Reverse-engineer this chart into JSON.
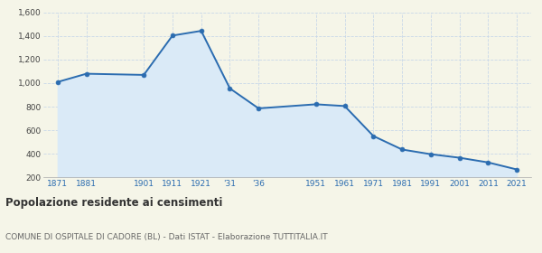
{
  "x_labels": [
    "1871",
    "1881",
    "1901",
    "1911",
    "1921",
    "'31",
    "'36",
    "1951",
    "1961",
    "1971",
    "1981",
    "1991",
    "2001",
    "2011",
    "2021"
  ],
  "x_positions": [
    0,
    1,
    3,
    4,
    5,
    6,
    7,
    9,
    10,
    11,
    12,
    13,
    14,
    15,
    16
  ],
  "y_values": [
    1010,
    1080,
    1070,
    1405,
    1445,
    955,
    785,
    820,
    805,
    550,
    435,
    395,
    365,
    325,
    265
  ],
  "line_color": "#2b6cb0",
  "fill_color": "#daeaf7",
  "marker_color": "#2b6cb0",
  "bg_color": "#f5f5e8",
  "grid_color": "#c8d8e8",
  "ylim": [
    200,
    1600
  ],
  "yticks": [
    200,
    400,
    600,
    800,
    1000,
    1200,
    1400,
    1600
  ],
  "ytick_labels": [
    "200",
    "400",
    "600",
    "800",
    "1,000",
    "1,200",
    "1,400",
    "1,600"
  ],
  "title": "Popolazione residente ai censimenti",
  "subtitle": "COMUNE DI OSPITALE DI CADORE (BL) - Dati ISTAT - Elaborazione TUTTITALIA.IT",
  "title_color": "#333333",
  "subtitle_color": "#666666",
  "xtick_color": "#2b6cb0",
  "xlim": [
    -0.5,
    16.5
  ]
}
